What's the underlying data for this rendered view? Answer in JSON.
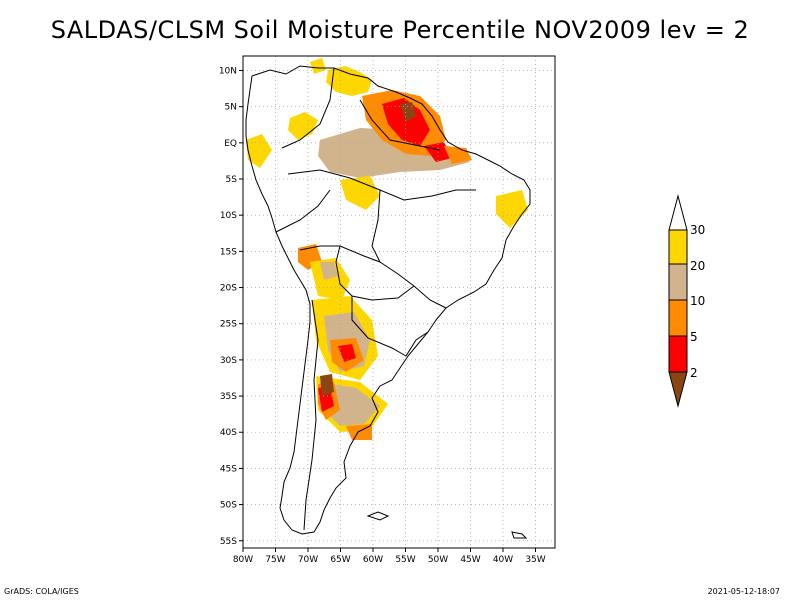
{
  "title": "SALDAS/CLSM Soil Moisture Percentile NOV2009 lev = 2",
  "footer": {
    "left": "GrADS: COLA/IGES",
    "right": "2021-05-12-18:07"
  },
  "map": {
    "lon_range": [
      -80,
      -32
    ],
    "lat_range": [
      -56,
      12
    ],
    "lat_ticks": [
      "10N",
      "5N",
      "EQ",
      "5S",
      "10S",
      "15S",
      "20S",
      "25S",
      "30S",
      "35S",
      "40S",
      "45S",
      "50S",
      "55S"
    ],
    "lat_values": [
      10,
      5,
      0,
      -5,
      -10,
      -15,
      -20,
      -25,
      -30,
      -35,
      -40,
      -45,
      -50,
      -55
    ],
    "lon_ticks": [
      "80W",
      "75W",
      "70W",
      "65W",
      "60W",
      "55W",
      "50W",
      "45W",
      "40W",
      "35W"
    ],
    "lon_values": [
      -80,
      -75,
      -70,
      -65,
      -60,
      -55,
      -50,
      -45,
      -40,
      -35
    ]
  },
  "legend": {
    "labels": [
      "30",
      "20",
      "10",
      "5",
      "2"
    ],
    "bins": [
      {
        "range": "<2",
        "color": "#8b4513"
      },
      {
        "range": "2-5",
        "color": "#ff0000"
      },
      {
        "range": "5-10",
        "color": "#ff8c00"
      },
      {
        "range": "10-20",
        "color": "#d2b48c"
      },
      {
        "range": "20-30",
        "color": "#ffd700"
      },
      {
        "range": ">30",
        "color": "#ffffff"
      }
    ]
  },
  "colors": {
    "brown": "#8b4513",
    "red": "#ff0000",
    "orange": "#ff8c00",
    "tan": "#d2b48c",
    "gold": "#ffd700"
  }
}
